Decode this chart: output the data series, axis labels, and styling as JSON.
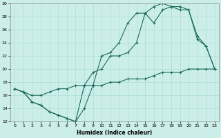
{
  "xlabel": "Humidex (Indice chaleur)",
  "background_color": "#cceee8",
  "grid_color": "#aaddda",
  "line_color": "#1a6b5a",
  "xlim": [
    -0.5,
    23.5
  ],
  "ylim": [
    12,
    30
  ],
  "xticks": [
    0,
    1,
    2,
    3,
    4,
    5,
    6,
    7,
    8,
    9,
    10,
    11,
    12,
    13,
    14,
    15,
    16,
    17,
    18,
    19,
    20,
    21,
    22,
    23
  ],
  "yticks": [
    12,
    14,
    16,
    18,
    20,
    22,
    24,
    26,
    28,
    30
  ],
  "line1_x": [
    0,
    1,
    2,
    3,
    4,
    5,
    6,
    7,
    8,
    9,
    10,
    11,
    12,
    13,
    14,
    15,
    16,
    17,
    18,
    19,
    20,
    21,
    22,
    23
  ],
  "line1_y": [
    17,
    16.5,
    15,
    14.5,
    13.5,
    13,
    12.5,
    12,
    14,
    17.5,
    22,
    22.5,
    24,
    27,
    28.5,
    28.5,
    29.5,
    30,
    29.5,
    29.5,
    29,
    25,
    23.5,
    20
  ],
  "line2_x": [
    0,
    1,
    2,
    3,
    4,
    5,
    6,
    7,
    8,
    9,
    10,
    11,
    12,
    13,
    14,
    15,
    16,
    17,
    18,
    19,
    20,
    21,
    22,
    23
  ],
  "line2_y": [
    17,
    16.5,
    15,
    14.5,
    13.5,
    13,
    12.5,
    12,
    17.5,
    19.5,
    20,
    22,
    22,
    22.5,
    24,
    28.5,
    27,
    29,
    29.5,
    29,
    29,
    24.5,
    23.5,
    20
  ],
  "line3_x": [
    0,
    1,
    2,
    3,
    4,
    5,
    6,
    7,
    8,
    9,
    10,
    11,
    12,
    13,
    14,
    15,
    16,
    17,
    18,
    19,
    20,
    21,
    22,
    23
  ],
  "line3_y": [
    17,
    16.5,
    16,
    16,
    16.5,
    17,
    17,
    17.5,
    17.5,
    17.5,
    17.5,
    18,
    18,
    18.5,
    18.5,
    18.5,
    19,
    19.5,
    19.5,
    19.5,
    20,
    20,
    20,
    20
  ]
}
